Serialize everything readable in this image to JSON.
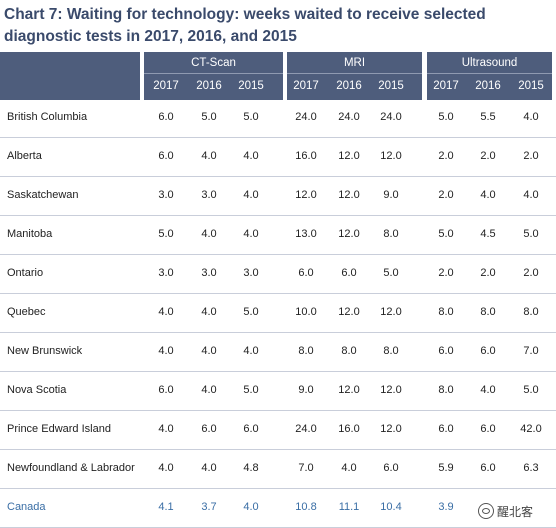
{
  "title": "Chart 7: Waiting for technology: weeks waited to receive selected diagnostic tests in 2017, 2016, and 2015",
  "watermark": "醒北客",
  "colors": {
    "header_bg": "#4e5d7c",
    "header_text": "#ffffff",
    "canada_text": "#3a6ea5",
    "title": "#3a4a6b"
  },
  "chart_data": {
    "type": "table",
    "title": "Chart 7: Waiting for technology: weeks waited to receive selected diagnostic tests in 2017, 2016, and 2015",
    "groups": [
      "CT-Scan",
      "MRI",
      "Ultrasound"
    ],
    "years": [
      "2017",
      "2016",
      "2015"
    ],
    "rows": [
      {
        "name": "British Columbia",
        "values": [
          "6.0",
          "5.0",
          "5.0",
          "24.0",
          "24.0",
          "24.0",
          "5.0",
          "5.5",
          "4.0"
        ]
      },
      {
        "name": "Alberta",
        "values": [
          "6.0",
          "4.0",
          "4.0",
          "16.0",
          "12.0",
          "12.0",
          "2.0",
          "2.0",
          "2.0"
        ]
      },
      {
        "name": "Saskatchewan",
        "values": [
          "3.0",
          "3.0",
          "4.0",
          "12.0",
          "12.0",
          "9.0",
          "2.0",
          "4.0",
          "4.0"
        ]
      },
      {
        "name": "Manitoba",
        "values": [
          "5.0",
          "4.0",
          "4.0",
          "13.0",
          "12.0",
          "8.0",
          "5.0",
          "4.5",
          "5.0"
        ]
      },
      {
        "name": "Ontario",
        "values": [
          "3.0",
          "3.0",
          "3.0",
          "6.0",
          "6.0",
          "5.0",
          "2.0",
          "2.0",
          "2.0"
        ]
      },
      {
        "name": "Quebec",
        "values": [
          "4.0",
          "4.0",
          "5.0",
          "10.0",
          "12.0",
          "12.0",
          "8.0",
          "8.0",
          "8.0"
        ]
      },
      {
        "name": "New Brunswick",
        "values": [
          "4.0",
          "4.0",
          "4.0",
          "8.0",
          "8.0",
          "8.0",
          "6.0",
          "6.0",
          "7.0"
        ]
      },
      {
        "name": "Nova Scotia",
        "values": [
          "6.0",
          "4.0",
          "5.0",
          "9.0",
          "12.0",
          "12.0",
          "8.0",
          "4.0",
          "5.0"
        ]
      },
      {
        "name": "Prince Edward Island",
        "values": [
          "4.0",
          "6.0",
          "6.0",
          "24.0",
          "16.0",
          "12.0",
          "6.0",
          "6.0",
          "42.0"
        ]
      },
      {
        "name": "Newfoundland & Labrador",
        "values": [
          "4.0",
          "4.0",
          "4.8",
          "7.0",
          "4.0",
          "6.0",
          "5.9",
          "6.0",
          "6.3"
        ]
      },
      {
        "name": "Canada",
        "values": [
          "4.1",
          "3.7",
          "4.0",
          "10.8",
          "11.1",
          "10.4",
          "3.9",
          "",
          ""
        ]
      }
    ]
  }
}
